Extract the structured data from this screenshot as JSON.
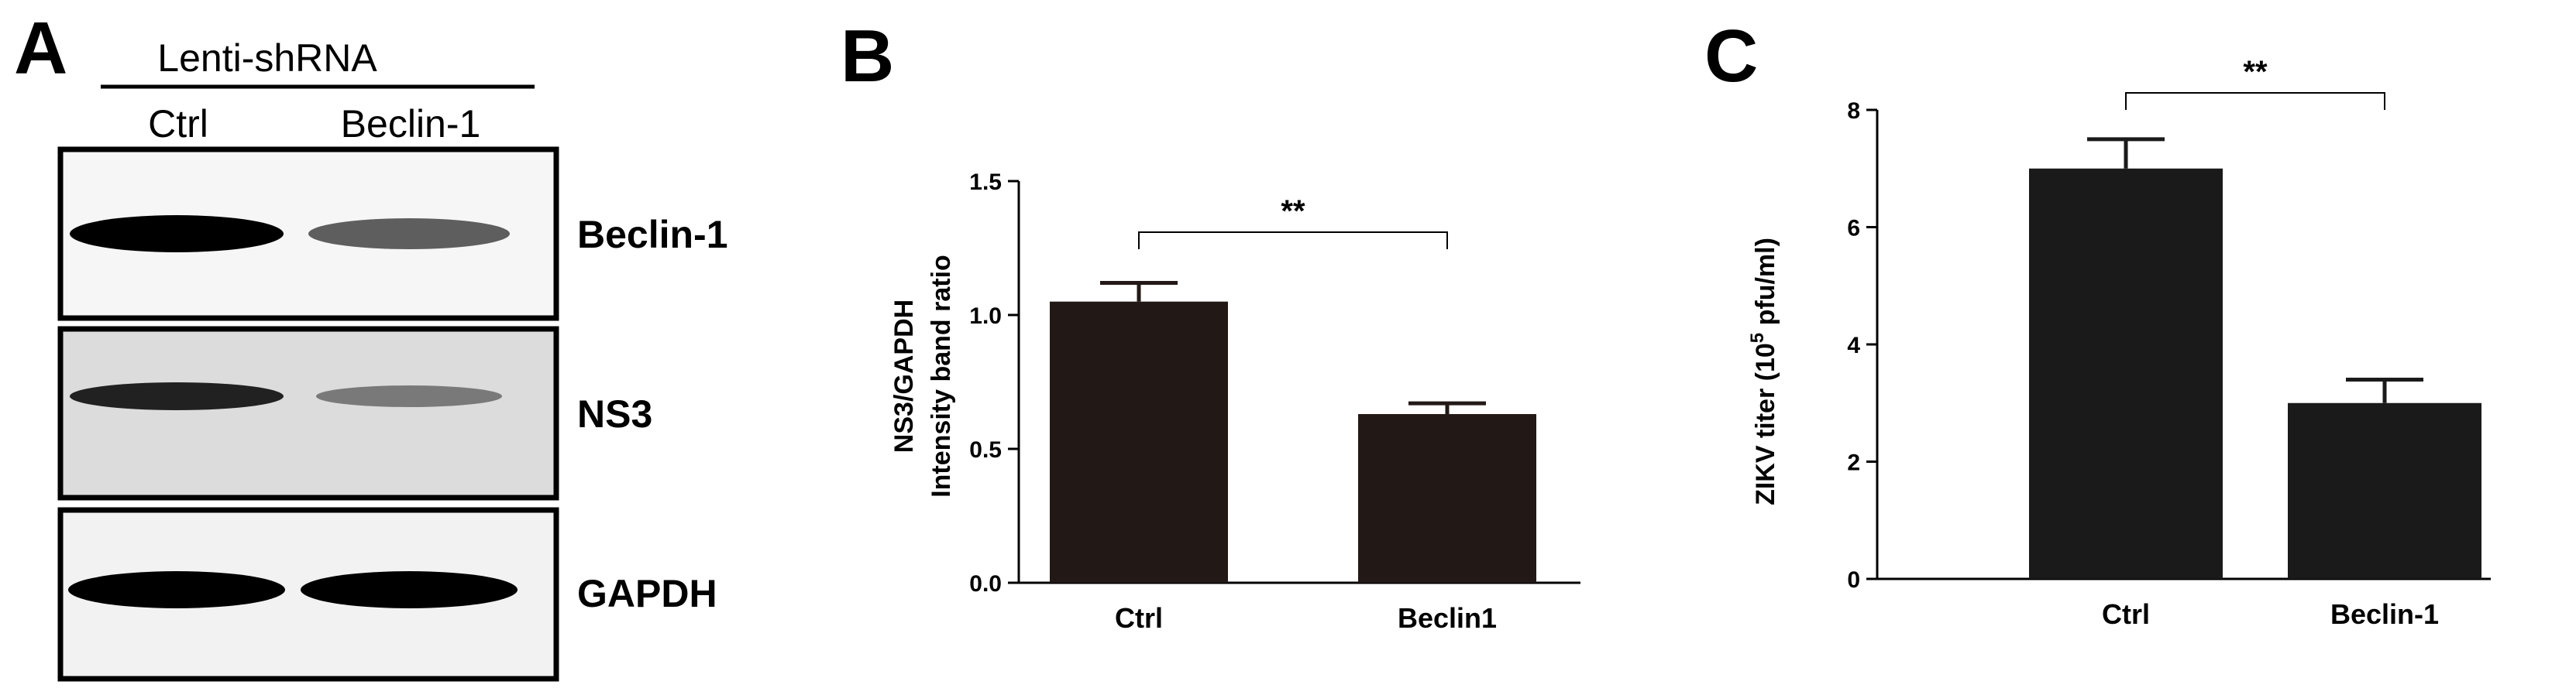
{
  "panels": {
    "a": {
      "letter": "A",
      "header": "Lenti-shRNA",
      "lanes": [
        "Ctrl",
        "Beclin-1"
      ],
      "blots": [
        {
          "label": "Beclin-1",
          "intensity": [
            1.0,
            0.62
          ]
        },
        {
          "label": "NS3",
          "intensity": [
            0.85,
            0.45
          ]
        },
        {
          "label": "GAPDH",
          "intensity": [
            1.0,
            1.0
          ]
        }
      ]
    },
    "b": {
      "letter": "B"
    },
    "c": {
      "letter": "C"
    }
  },
  "chart_data": [
    {
      "type": "bar",
      "panel": "B",
      "categories": [
        "Ctrl",
        "Beclin1"
      ],
      "values": [
        1.05,
        0.63
      ],
      "errors": [
        0.07,
        0.04
      ],
      "ylabel_line1": "NS3/GAPDH",
      "ylabel_line2": "Intensity band ratio",
      "ylim": [
        0,
        1.5
      ],
      "yticks": [
        "0.0",
        "0.5",
        "1.0",
        "1.5"
      ],
      "significance": "**",
      "bar_color": "#221916"
    },
    {
      "type": "bar",
      "panel": "C",
      "categories": [
        "Ctrl",
        "Beclin-1"
      ],
      "values": [
        7.0,
        3.0
      ],
      "errors": [
        0.5,
        0.4
      ],
      "ylabel_prefix": "ZIKV titer (10",
      "ylabel_sup": "5",
      "ylabel_suffix": " pfu/ml)",
      "ylim": [
        0,
        8
      ],
      "yticks": [
        "0",
        "2",
        "4",
        "6",
        "8"
      ],
      "significance": "**",
      "bar_color": "#1a1a1a"
    }
  ]
}
